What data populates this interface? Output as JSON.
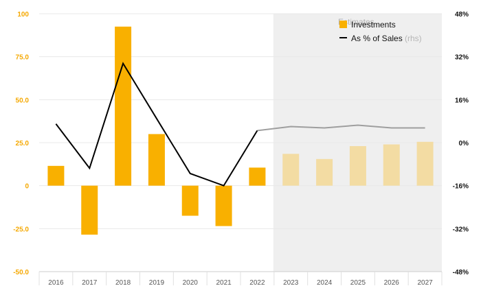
{
  "chart_data": {
    "type": "bar",
    "categories": [
      "2016",
      "2017",
      "2018",
      "2019",
      "2020",
      "2021",
      "2022",
      "2023",
      "2024",
      "2025",
      "2026",
      "2027"
    ],
    "series": [
      {
        "name": "Investments",
        "type": "bar",
        "axis": "left",
        "values": [
          11.5,
          -28.5,
          92.5,
          30,
          -17.5,
          -23.5,
          10.5,
          18.5,
          15.5,
          23,
          24,
          25.5
        ],
        "estimated": [
          false,
          false,
          false,
          false,
          false,
          false,
          false,
          true,
          true,
          true,
          true,
          true
        ]
      },
      {
        "name": "As % of Sales",
        "name_suffix": "(rhs)",
        "type": "line",
        "axis": "right",
        "values": [
          7,
          -9.5,
          29.5,
          9,
          -11.5,
          -16,
          4.5,
          6,
          5.5,
          6.5,
          5.5,
          5.5
        ],
        "estimated": [
          false,
          false,
          false,
          false,
          false,
          false,
          false,
          true,
          true,
          true,
          true,
          true
        ]
      }
    ],
    "ylim_left": [
      -50,
      100
    ],
    "ylim_right": [
      -48,
      48
    ],
    "y_ticks_left": [
      "100",
      "75.0",
      "50.0",
      "25.0",
      "0",
      "-25.0",
      "-50.0"
    ],
    "y_ticks_right": [
      "48%",
      "32%",
      "16%",
      "0%",
      "-16%",
      "-32%",
      "-48%"
    ],
    "estimate_band": {
      "label": "Estimates",
      "from": "2023",
      "to": "2027"
    },
    "legend_position": "top-right",
    "grid": true,
    "colors": {
      "bar_actual": "#f9b000",
      "bar_estimate": "#f3dca3",
      "line_actual": "#000000",
      "line_estimate": "#9e9e9e",
      "estimate_band": "#efefef",
      "left_axis_text": "#f5a800"
    }
  }
}
